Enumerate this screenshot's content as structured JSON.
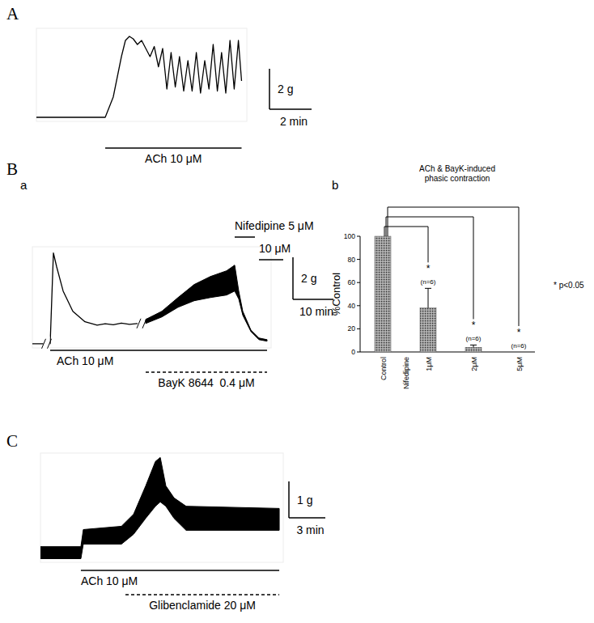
{
  "figure": {
    "panel_labels": [
      "A",
      "B",
      "C"
    ]
  },
  "chart_data": [
    {
      "type": "line",
      "tick_labels": false,
      "xlim": [
        0,
        10
      ],
      "ylim": [
        -0.2,
        4.4
      ],
      "series": [
        {
          "type": "line",
          "color": "#000000",
          "x": [
            0,
            3.27,
            3.65,
            4.04,
            4.23,
            4.42,
            4.6,
            4.8,
            5.0,
            5.2,
            5.4,
            5.6,
            5.8,
            6.0,
            6.2,
            6.4,
            6.6,
            6.8,
            7.0,
            7.2,
            7.4,
            7.6,
            7.8,
            8.0,
            8.2,
            8.4,
            8.6,
            8.8,
            9.0,
            9.2,
            9.4,
            9.6,
            9.75
          ],
          "values": [
            0,
            0,
            1.0,
            3.0,
            3.8,
            4.0,
            3.88,
            3.6,
            3.8,
            3.4,
            3.0,
            3.5,
            2.5,
            3.4,
            1.4,
            3.2,
            1.5,
            3.0,
            1.3,
            2.8,
            1.3,
            3.2,
            1.2,
            2.8,
            1.4,
            3.6,
            1.3,
            3.2,
            1.2,
            3.8,
            1.4,
            3.8,
            1.8
          ]
        }
      ],
      "annotations": [
        {
          "text": "ACh 10 μM",
          "start": 3.27,
          "end": 9.75,
          "line_style": "solid"
        }
      ],
      "scale_bar": {
        "x": 2,
        "x_label": "2 min",
        "y": 2,
        "y_label": "2 g"
      }
    },
    {
      "type": "line",
      "panel": "a",
      "tick_labels": false,
      "xlim": [
        0,
        59
      ],
      "ylim": [
        -0.2,
        4.6
      ],
      "breaks": [
        3.5,
        27
      ],
      "series": [
        {
          "type": "line",
          "color": "#000000",
          "x": [
            0,
            3,
            3.5,
            4,
            4.4,
            5.2,
            6.0,
            7.6,
            10,
            13,
            16,
            18,
            20,
            22,
            24,
            26
          ],
          "values": [
            0,
            0,
            null,
            0,
            0,
            4.31,
            3.65,
            2.5,
            1.54,
            1.04,
            0.88,
            0.95,
            0.9,
            0.98,
            0.92,
            0.96
          ]
        },
        {
          "type": "band",
          "color": "#000000",
          "x": [
            28,
            32,
            36,
            40,
            44,
            48,
            50,
            51,
            52,
            54,
            56,
            58
          ],
          "values": [
            1.15,
            1.54,
            2.19,
            2.81,
            3.19,
            3.46,
            3.73,
            2.5,
            1.54,
            0.65,
            0.27,
            0.19
          ],
          "lower": [
            0.96,
            1.27,
            1.73,
            2.04,
            2.19,
            2.31,
            2.5,
            2.12,
            1.35,
            0.58,
            0.19,
            0.12
          ]
        }
      ],
      "annotations": [
        {
          "text": "Nifedipine 5 μM",
          "start": 50,
          "end": 55,
          "line_style": "solid"
        },
        {
          "text": "10 μM",
          "start": 56,
          "end": 62,
          "line_style": "solid"
        },
        {
          "text": "ACh 10 μM",
          "start": 4.4,
          "end": 58,
          "line_style": "solid"
        },
        {
          "text": "BayK 8644  0.4 μM",
          "start": 28,
          "end": 58,
          "line_style": "dashed"
        }
      ],
      "scale_bar": {
        "x": 10,
        "x_label": "10 min",
        "y": 2,
        "y_label": "2 g"
      }
    },
    {
      "type": "bar",
      "panel": "b",
      "title": "ACh & BayK-induced phasic contraction",
      "y_label": "%Control",
      "categories": [
        "Control",
        "1μM",
        "2μM",
        "5μM"
      ],
      "group_label": "Nifedipine",
      "values": [
        100,
        38,
        4,
        0
      ],
      "errors": [
        null,
        17,
        2,
        null
      ],
      "significance": [
        null,
        "*",
        "*",
        "*"
      ],
      "n_labels": [
        null,
        "(n=6)",
        "(n=6)",
        "(n=6)"
      ],
      "note": "* p<0.05",
      "ylim": [
        0,
        100
      ],
      "yticks": [
        0,
        20,
        40,
        60,
        80,
        100
      ],
      "color": "#999999",
      "grid": false
    },
    {
      "type": "line",
      "tick_labels": false,
      "xlim": [
        0,
        20
      ],
      "ylim": [
        -0.1,
        2.9
      ],
      "series": [
        {
          "type": "band",
          "color": "#000000",
          "x": [
            0,
            3.33,
            3.53,
            6.67,
            7.67,
            8.67,
            9.47,
            9.87,
            10.33,
            11.0,
            12.0,
            19.67
          ],
          "values": [
            0.33,
            0.33,
            0.8,
            0.89,
            1.22,
            2.0,
            2.67,
            2.78,
            2.0,
            1.67,
            1.44,
            1.38
          ],
          "lower": [
            0,
            0,
            0.4,
            0.4,
            0.67,
            1.11,
            1.44,
            1.56,
            1.44,
            1.11,
            0.78,
            0.78
          ]
        }
      ],
      "annotations": [
        {
          "text": "ACh 10 μM",
          "start": 3.33,
          "end": 19.67,
          "line_style": "solid"
        },
        {
          "text": "Glibenclamide 20 μM",
          "start": 7,
          "end": 19.67,
          "line_style": "dashed"
        }
      ],
      "scale_bar": {
        "x": 3,
        "x_label": "3 min",
        "y": 1,
        "y_label": "1 g"
      }
    }
  ]
}
